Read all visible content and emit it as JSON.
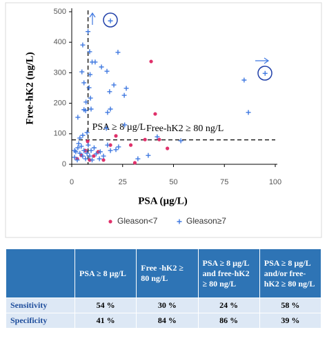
{
  "chart_data": {
    "type": "scatter",
    "xlabel": "PSA (µg/L)",
    "ylabel": "Free-hK2 (ng/L)",
    "xlim": [
      0,
      100
    ],
    "xticks": [
      0,
      25,
      50,
      75,
      100
    ],
    "ylim": [
      0,
      500
    ],
    "yticks": [
      0,
      100,
      200,
      300,
      400,
      500
    ],
    "reference_lines": [
      {
        "axis": "x",
        "value": 8,
        "label": "PSA ≥ 8 µg/L"
      },
      {
        "axis": "y",
        "value": 80,
        "label": "Free-hK2 ≥ 80 ng/L"
      }
    ],
    "series": [
      {
        "name": "Gleason<7",
        "color": "#e0306a",
        "marker": "dot",
        "x": [
          39,
          41,
          36,
          47,
          31,
          19,
          13,
          2.7,
          4.7,
          6.8,
          8.8,
          10.8,
          15.6,
          7.8,
          21.7,
          43,
          29
        ],
        "values": [
          337,
          165,
          81,
          52,
          5,
          63,
          41,
          18,
          29,
          45,
          14,
          27,
          14,
          75,
          93,
          81,
          63
        ]
      },
      {
        "name": "Gleason≥7",
        "color": "#3f78e0",
        "marker": "plus",
        "x": [
          8,
          19,
          5.4,
          8.8,
          10,
          11.5,
          22.7,
          14.6,
          17.3,
          9,
          5,
          6,
          8.5,
          18.6,
          20.7,
          25.8,
          26.8,
          9.2,
          7,
          6.8,
          6,
          3,
          19,
          17.6,
          9.5,
          84.7,
          86.8,
          95,
          26,
          17,
          42,
          53.6,
          23,
          21.7,
          17.6,
          14,
          11,
          1.4,
          2,
          3,
          3.4,
          4,
          4.7,
          5.4,
          6,
          6.8,
          7.5,
          8.1,
          8.8,
          9.5,
          10,
          2.7,
          4,
          5.4,
          7.5,
          1.4,
          13.6,
          15.6,
          32.5,
          37.6,
          12,
          19
        ],
        "values": [
          435,
          470,
          391,
          369,
          335,
          335,
          367,
          319,
          305,
          294,
          303,
          267,
          251,
          238,
          260,
          226,
          249,
          217,
          204,
          176,
          179,
          154,
          181,
          170,
          181,
          276,
          170,
          298,
          129,
          118,
          90,
          77,
          57,
          48,
          63,
          41,
          54,
          23,
          41,
          54,
          68,
          36,
          59,
          27,
          45,
          18,
          36,
          63,
          27,
          45,
          14,
          14,
          86,
          95,
          104,
          45,
          18,
          27,
          18,
          29,
          34,
          45
        ]
      }
    ]
  },
  "table": {
    "header": [
      "PSA ≥ 8 µg/L",
      "Free -hK2 ≥ 80 ng/L",
      "PSA ≥ 8 µg/L and free-hK2 ≥ 80 ng/L",
      "PSA ≥ 8 µg/L and/or free-hK2 ≥ 80 ng/L"
    ],
    "rows": [
      {
        "label": "Sensitivity",
        "values": [
          "54 %",
          "30 %",
          "24 %",
          "58 %"
        ]
      },
      {
        "label": "Specificity",
        "values": [
          "41 %",
          "84 %",
          "86 %",
          "39 %"
        ]
      }
    ]
  }
}
